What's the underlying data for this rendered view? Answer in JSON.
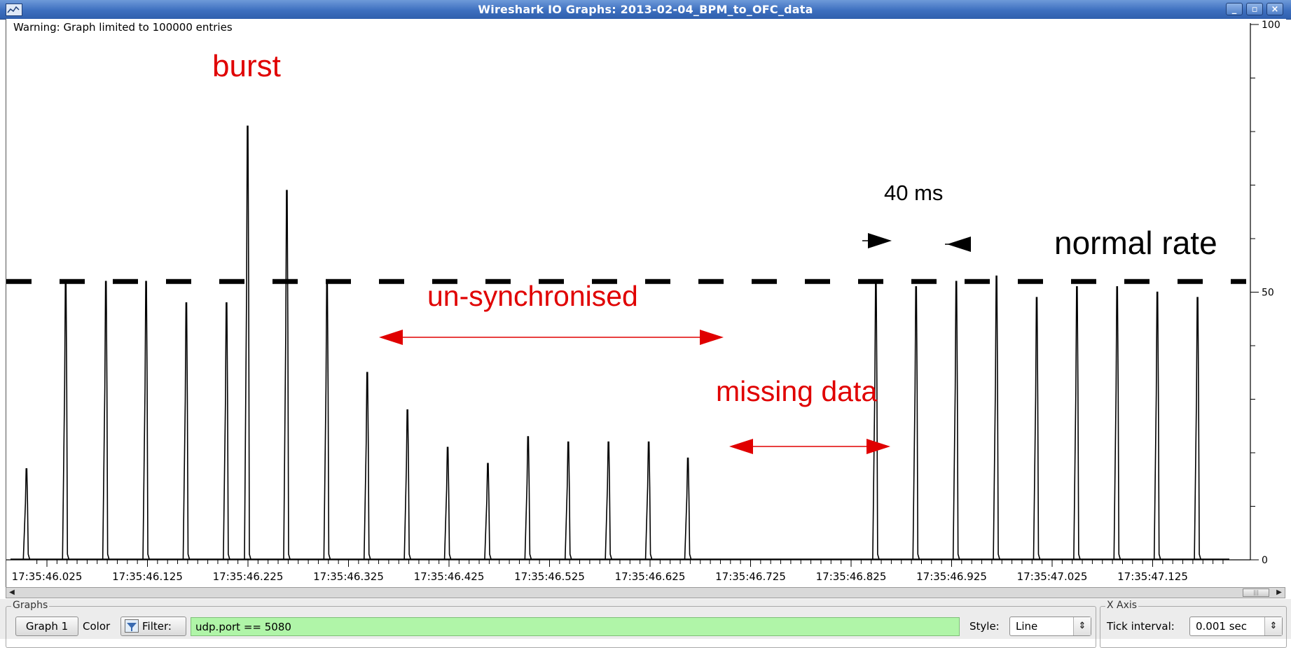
{
  "window": {
    "title": "Wireshark IO Graphs: 2013-02-04_BPM_to_OFC_data",
    "minimize_label": "_",
    "maximize_label": "▫",
    "close_label": "×"
  },
  "graph": {
    "warning": "Warning: Graph limited to 100000 entries",
    "annotations": {
      "burst": "burst",
      "unsynchronised": "un-synchronised",
      "missing": "missing data",
      "interval": "40 ms",
      "normal_rate": "normal rate"
    }
  },
  "chart_data": {
    "type": "line",
    "title": "",
    "xlabel": "",
    "ylabel": "",
    "y_ticks": [
      "100",
      "50",
      "0"
    ],
    "ylim": [
      0,
      100
    ],
    "x_tick_labels": [
      "17:35:46.025",
      "17:35:46.125",
      "17:35:46.225",
      "17:35:46.325",
      "17:35:46.425",
      "17:35:46.525",
      "17:35:46.625",
      "17:35:46.725",
      "17:35:46.825",
      "17:35:46.925",
      "17:35:47.025",
      "17:35:47.125"
    ],
    "x_tick_interval_sec": 0.001,
    "normal_rate_level": 52,
    "series": [
      {
        "color": "#000000",
        "peaks": [
          {
            "time": "17:35:46.005",
            "value": 17
          },
          {
            "time": "17:35:46.044",
            "value": 52
          },
          {
            "time": "17:35:46.084",
            "value": 52
          },
          {
            "time": "17:35:46.124",
            "value": 52
          },
          {
            "time": "17:35:46.164",
            "value": 48
          },
          {
            "time": "17:35:46.204",
            "value": 48
          },
          {
            "time": "17:35:46.225",
            "value": 81
          },
          {
            "time": "17:35:46.264",
            "value": 69
          },
          {
            "time": "17:35:46.304",
            "value": 52
          },
          {
            "time": "17:35:46.344",
            "value": 35
          },
          {
            "time": "17:35:46.384",
            "value": 28
          },
          {
            "time": "17:35:46.424",
            "value": 21
          },
          {
            "time": "17:35:46.464",
            "value": 18
          },
          {
            "time": "17:35:46.504",
            "value": 23
          },
          {
            "time": "17:35:46.544",
            "value": 22
          },
          {
            "time": "17:35:46.584",
            "value": 22
          },
          {
            "time": "17:35:46.624",
            "value": 22
          },
          {
            "time": "17:35:46.663",
            "value": 19
          },
          {
            "time": "17:35:46.850",
            "value": 52
          },
          {
            "time": "17:35:46.890",
            "value": 51
          },
          {
            "time": "17:35:46.930",
            "value": 52
          },
          {
            "time": "17:35:46.970",
            "value": 53
          },
          {
            "time": "17:35:47.010",
            "value": 49
          },
          {
            "time": "17:35:47.050",
            "value": 51
          },
          {
            "time": "17:35:47.090",
            "value": 51
          },
          {
            "time": "17:35:47.130",
            "value": 50
          },
          {
            "time": "17:35:47.170",
            "value": 49
          }
        ]
      }
    ]
  },
  "graphs_panel": {
    "title": "Graphs",
    "graph1_label": "Graph 1",
    "color_label": "Color",
    "filter_label": "Filter:",
    "filter_value": "udp.port == 5080",
    "style_label": "Style:",
    "style_value": "Line"
  },
  "xaxis_panel": {
    "title": "X Axis",
    "tick_interval_label": "Tick interval:",
    "tick_interval_value": "0.001 sec"
  }
}
